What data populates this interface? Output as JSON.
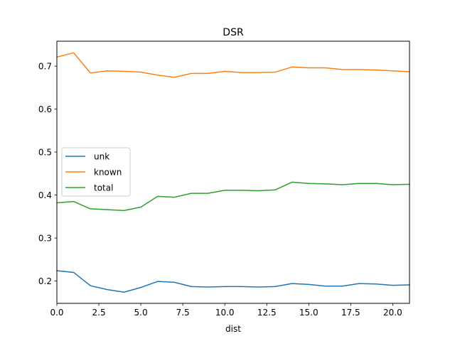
{
  "chart_data": {
    "type": "line",
    "title": "DSR",
    "xlabel": "dist",
    "ylabel": "",
    "xlim": [
      0,
      21
    ],
    "ylim": [
      0.148,
      0.758
    ],
    "x_ticks": [
      0,
      2.5,
      5,
      7.5,
      10,
      12.5,
      15,
      17.5,
      20
    ],
    "x_tick_labels": [
      "0.0",
      "2.5",
      "5.0",
      "7.5",
      "10.0",
      "12.5",
      "15.0",
      "17.5",
      "20.0"
    ],
    "y_ticks": [
      0.2,
      0.3,
      0.4,
      0.5,
      0.6,
      0.7
    ],
    "y_tick_labels": [
      "0.2",
      "0.3",
      "0.4",
      "0.5",
      "0.6",
      "0.7"
    ],
    "grid": false,
    "legend_position": "center-left",
    "x": [
      0,
      1,
      2,
      3,
      4,
      5,
      6,
      7,
      8,
      9,
      10,
      11,
      12,
      13,
      14,
      15,
      16,
      17,
      18,
      19,
      20,
      21
    ],
    "series": [
      {
        "name": "unk",
        "color": "#1f77b4",
        "values": [
          0.224,
          0.22,
          0.189,
          0.18,
          0.174,
          0.185,
          0.199,
          0.197,
          0.187,
          0.186,
          0.187,
          0.187,
          0.186,
          0.187,
          0.194,
          0.192,
          0.188,
          0.188,
          0.194,
          0.193,
          0.19,
          0.191
        ]
      },
      {
        "name": "known",
        "color": "#ff7f0e",
        "values": [
          0.721,
          0.731,
          0.684,
          0.689,
          0.688,
          0.686,
          0.679,
          0.674,
          0.683,
          0.683,
          0.688,
          0.685,
          0.685,
          0.686,
          0.698,
          0.696,
          0.696,
          0.692,
          0.692,
          0.691,
          0.689,
          0.687
        ]
      },
      {
        "name": "total",
        "color": "#2ca02c",
        "values": [
          0.382,
          0.385,
          0.368,
          0.366,
          0.364,
          0.372,
          0.397,
          0.395,
          0.404,
          0.404,
          0.411,
          0.411,
          0.41,
          0.412,
          0.43,
          0.427,
          0.426,
          0.424,
          0.427,
          0.427,
          0.424,
          0.425
        ]
      }
    ]
  }
}
